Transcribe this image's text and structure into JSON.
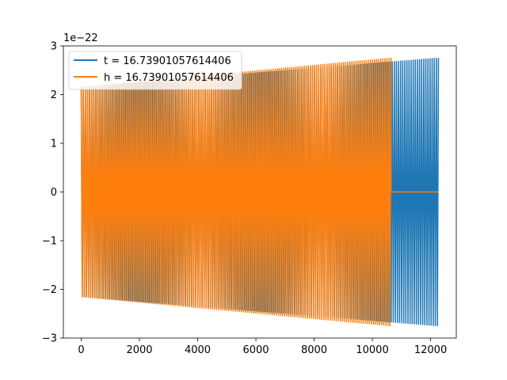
{
  "chart_data": {
    "type": "line",
    "title": "",
    "xlabel": "",
    "ylabel": "",
    "y_offset_label": "1e−22",
    "xlim": [
      -613,
      12883
    ],
    "ylim": [
      -3,
      3
    ],
    "xticks": [
      0,
      2000,
      4000,
      6000,
      8000,
      10000,
      12000
    ],
    "xtick_labels": [
      "0",
      "2000",
      "4000",
      "6000",
      "8000",
      "10000",
      "12000"
    ],
    "yticks": [
      -3,
      -2,
      -1,
      0,
      1,
      2,
      3
    ],
    "ytick_labels": [
      "−3",
      "−2",
      "−1",
      "0",
      "1",
      "2",
      "3"
    ],
    "grid": false,
    "legend_position": "top-left",
    "series": [
      {
        "name": "t = 16.73901057614406",
        "color": "#1f77b4",
        "kind": "oscillation",
        "x_start": 0,
        "x_end": 12270,
        "amplitude_start": 2.15,
        "amplitude_end": 2.75,
        "cycles": 170,
        "flat_after": null
      },
      {
        "name": "h = 16.73901057614406",
        "color": "#ff7f0e",
        "kind": "oscillation",
        "x_start": 0,
        "x_end": 10640,
        "amplitude_start": 2.15,
        "amplitude_end": 2.75,
        "cycles": 150,
        "flat_after": [
          10640,
          12270
        ]
      }
    ]
  }
}
